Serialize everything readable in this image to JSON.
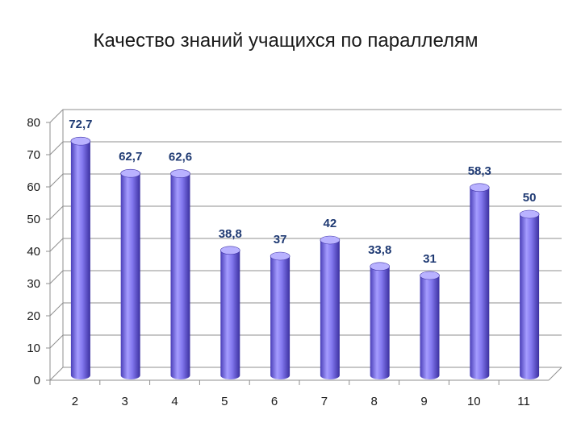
{
  "chart_data": {
    "type": "bar",
    "title": "Качество знаний учащихся по параллелям",
    "categories": [
      "2",
      "3",
      "4",
      "5",
      "6",
      "7",
      "8",
      "9",
      "10",
      "11"
    ],
    "values": [
      72.7,
      62.7,
      62.6,
      38.8,
      37,
      42,
      33.8,
      31,
      58.3,
      50
    ],
    "value_labels": [
      "72,7",
      "62,7",
      "62,6",
      "38,8",
      "37",
      "42",
      "33,8",
      "31",
      "58,3",
      "50"
    ],
    "y_ticks": [
      "0",
      "10",
      "20",
      "30",
      "40",
      "50",
      "60",
      "70",
      "80"
    ],
    "ylim": [
      0,
      80
    ],
    "xlabel": "",
    "ylabel": "",
    "grid": true,
    "legend": "none",
    "colors": {
      "bar": "#7b6fe8",
      "bar_dark": "#3f33a8",
      "bar_light": "#b9b2ff",
      "label": "#1f3a73",
      "grid": "#8f8f8f"
    }
  }
}
